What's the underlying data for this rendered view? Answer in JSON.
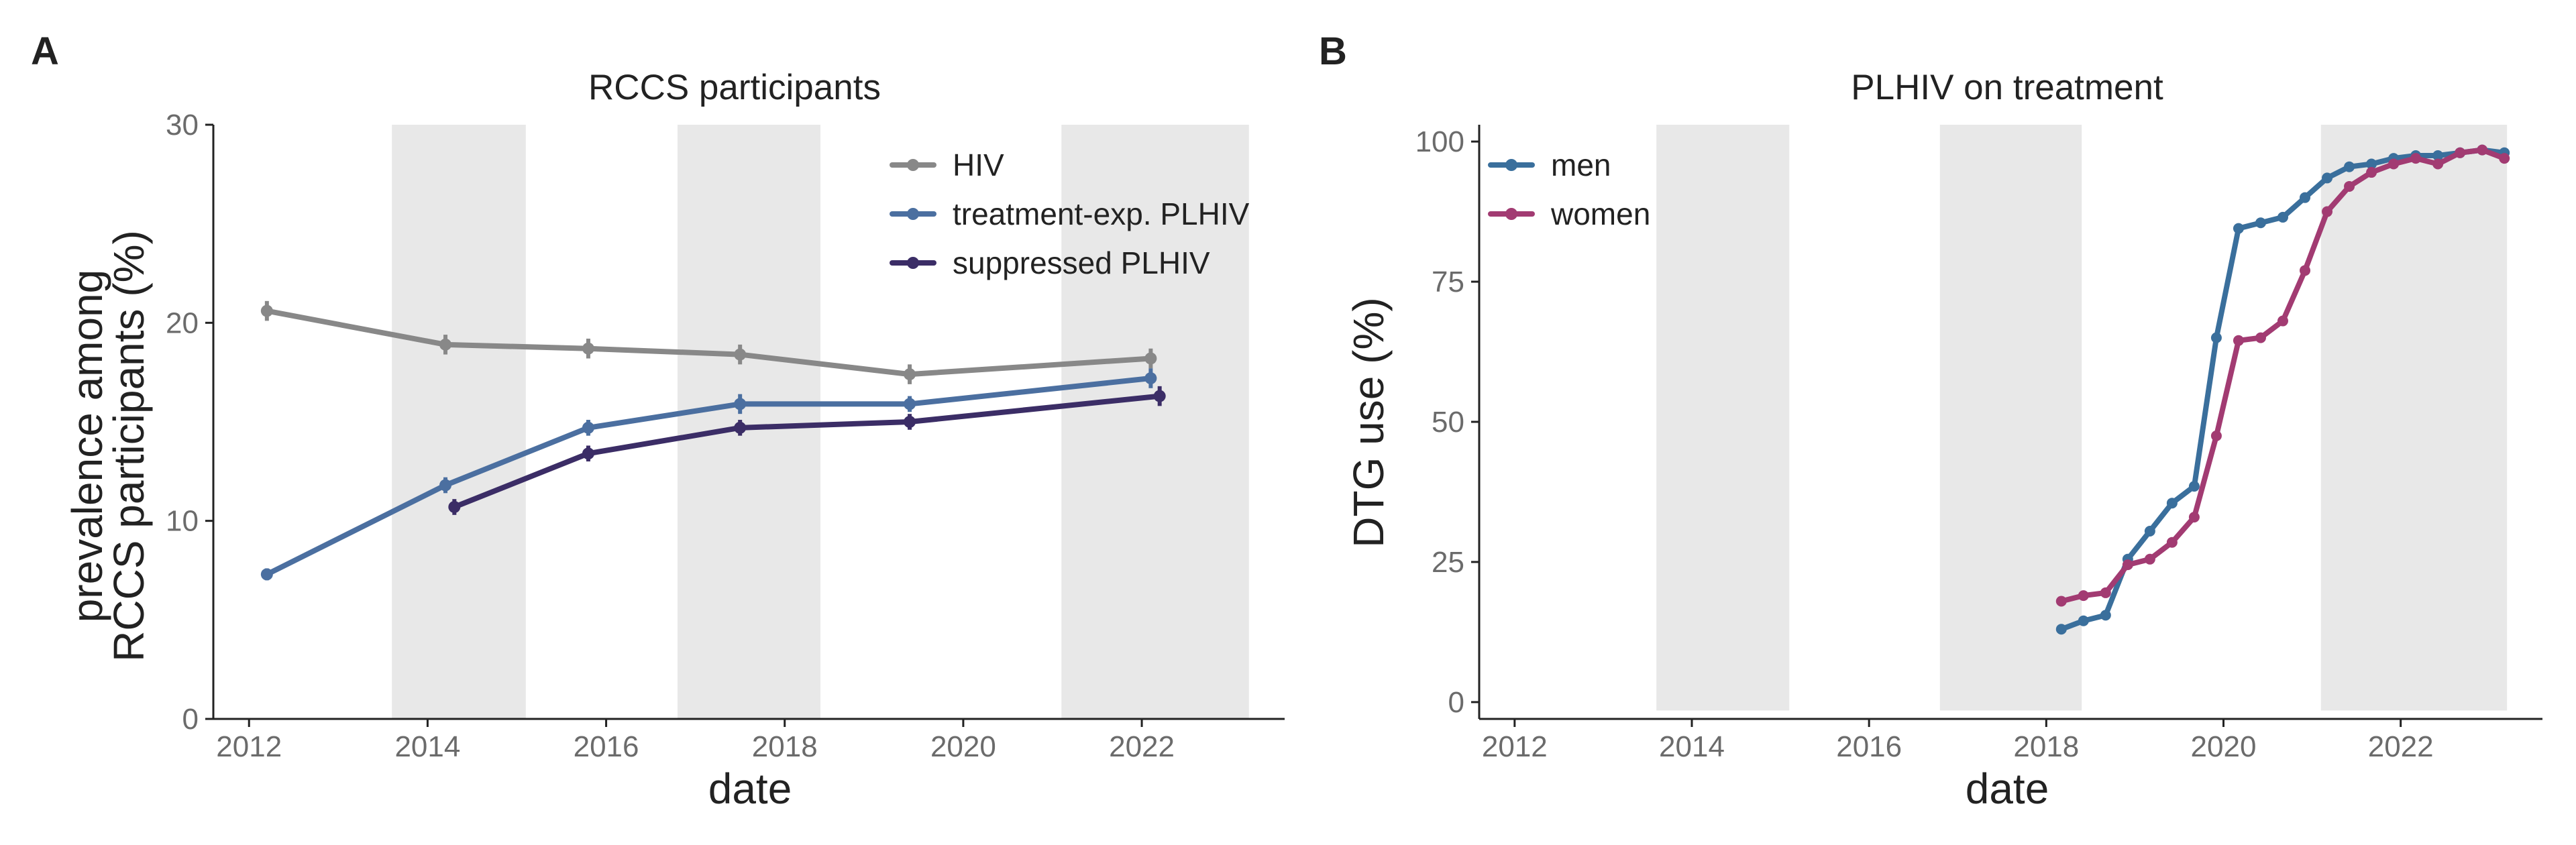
{
  "figure": {
    "panel_a_label": "A",
    "panel_b_label": "B"
  },
  "chart_data": [
    {
      "type": "line",
      "panel": "A",
      "title": "RCCS participants",
      "xlabel": "date",
      "ylabel_line1": "prevalence among",
      "ylabel_line2": "RCCS participants (%)",
      "xlim": [
        2011.6,
        2023.6
      ],
      "ylim": [
        0,
        30
      ],
      "xticks": [
        2012,
        2014,
        2016,
        2018,
        2020,
        2022
      ],
      "yticks": [
        0,
        10,
        20,
        30
      ],
      "shaded_periods": [
        [
          2013.6,
          2015.1
        ],
        [
          2016.8,
          2018.4
        ],
        [
          2021.1,
          2023.2
        ]
      ],
      "grid": false,
      "legend_position": "top-right",
      "series": [
        {
          "name": "HIV",
          "color": "#888888",
          "x": [
            2012.2,
            2014.2,
            2015.8,
            2017.5,
            2019.4,
            2022.1
          ],
          "y": [
            20.6,
            18.9,
            18.7,
            18.4,
            17.4,
            18.2
          ],
          "err": [
            0.5,
            0.5,
            0.5,
            0.5,
            0.5,
            0.5
          ]
        },
        {
          "name": "treatment-exp. PLHIV",
          "color": "#4b6fa0",
          "x": [
            2012.2,
            2014.2,
            2015.8,
            2017.5,
            2019.4,
            2022.1
          ],
          "y": [
            7.3,
            11.8,
            14.7,
            15.9,
            15.9,
            17.2
          ],
          "err": [
            0.3,
            0.4,
            0.4,
            0.5,
            0.4,
            0.5
          ]
        },
        {
          "name": "suppressed PLHIV",
          "color": "#3b2d66",
          "x": [
            2014.3,
            2015.8,
            2017.5,
            2019.4,
            2022.2
          ],
          "y": [
            10.7,
            13.4,
            14.7,
            15.0,
            16.3
          ],
          "err": [
            0.4,
            0.4,
            0.4,
            0.4,
            0.5
          ]
        }
      ]
    },
    {
      "type": "line",
      "panel": "B",
      "title": "PLHIV on treatment",
      "xlabel": "date",
      "ylabel": "DTG use (%)",
      "xlim": [
        2011.6,
        2023.6
      ],
      "ylim": [
        -3,
        103
      ],
      "xticks": [
        2012,
        2014,
        2016,
        2018,
        2020,
        2022
      ],
      "yticks": [
        0,
        25,
        50,
        75,
        100
      ],
      "shaded_periods": [
        [
          2013.6,
          2015.1
        ],
        [
          2016.8,
          2018.4
        ],
        [
          2021.1,
          2023.2
        ]
      ],
      "grid": false,
      "legend_position": "top-left",
      "series": [
        {
          "name": "men",
          "color": "#3a6f9c",
          "x": [
            2018.17,
            2018.42,
            2018.67,
            2018.92,
            2019.17,
            2019.42,
            2019.67,
            2019.92,
            2020.17,
            2020.42,
            2020.67,
            2020.92,
            2021.17,
            2021.42,
            2021.67,
            2021.92,
            2022.17,
            2022.42,
            2022.67,
            2022.92,
            2023.17
          ],
          "y": [
            13,
            14.5,
            15.5,
            25.5,
            30.5,
            35.5,
            38.5,
            65,
            84.5,
            85.5,
            86.5,
            90,
            93.5,
            95.5,
            96,
            97,
            97.5,
            97.5,
            98,
            98.5,
            98
          ]
        },
        {
          "name": "women",
          "color": "#a23b72",
          "x": [
            2018.17,
            2018.42,
            2018.67,
            2018.92,
            2019.17,
            2019.42,
            2019.67,
            2019.92,
            2020.17,
            2020.42,
            2020.67,
            2020.92,
            2021.17,
            2021.42,
            2021.67,
            2021.92,
            2022.17,
            2022.42,
            2022.67,
            2022.92,
            2023.17
          ],
          "y": [
            18,
            19,
            19.5,
            24.5,
            25.5,
            28.5,
            33,
            47.5,
            64.5,
            65,
            68,
            77,
            87.5,
            92,
            94.5,
            96,
            97,
            96,
            98,
            98.5,
            97
          ]
        }
      ]
    }
  ]
}
